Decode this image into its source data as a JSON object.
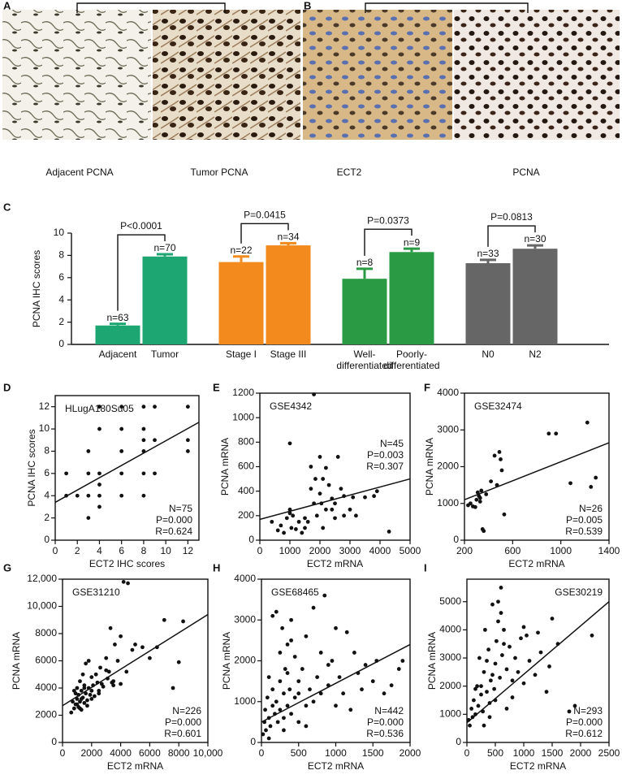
{
  "images": [
    {
      "panel": "A",
      "captions": [
        "Adjacent PCNA",
        "Tumor PCNA"
      ]
    },
    {
      "panel": "B",
      "captions": [
        "ECT2",
        "PCNA"
      ]
    }
  ],
  "chart_data": [
    {
      "panel": "C",
      "type": "bar",
      "ylabel": "PCNA IHC scores",
      "categories": [
        "Adjacent",
        "Tumor",
        "Stage I",
        "Stage III",
        "Well-differentiated",
        "Poorly-differentiated",
        "N0",
        "N2"
      ],
      "values": [
        1.7,
        7.9,
        7.4,
        8.9,
        5.9,
        8.3,
        7.3,
        8.6
      ],
      "errors": [
        0.15,
        0.2,
        0.5,
        0.2,
        0.9,
        0.3,
        0.3,
        0.3
      ],
      "colors": [
        "#1ea672",
        "#1ea672",
        "#f28a1e",
        "#f28a1e",
        "#2a9a45",
        "#2a9a45",
        "#666666",
        "#666666"
      ],
      "n_labels": [
        "n=63",
        "n=70",
        "n=22",
        "n=34",
        "n=8",
        "n=9",
        "n=33",
        "n=30"
      ],
      "p_labels": [
        "P<0.0001",
        "P=0.0415",
        "P=0.0373",
        "P=0.0813"
      ],
      "ylim": [
        0,
        10
      ],
      "yticks": [
        0,
        2,
        4,
        6,
        8,
        10
      ]
    },
    {
      "panel": "D",
      "type": "scatter",
      "xlabel": "ECT2 IHC scores",
      "ylabel": "PCNA IHC scores",
      "dataset": "HLugA180Su05",
      "stats": [
        "N=75",
        "P=0.000",
        "R=0.624"
      ],
      "label_corner": "upper left",
      "stats_corner": "lower right",
      "x": [
        1,
        1,
        2,
        3,
        3,
        3,
        3,
        4,
        4,
        4,
        4,
        4,
        4,
        6,
        6,
        6,
        6,
        6,
        8,
        8,
        8,
        8,
        8,
        8,
        9,
        9,
        9,
        12,
        12,
        12
      ],
      "y": [
        4,
        6,
        4,
        2,
        4,
        6,
        8,
        3,
        4,
        5,
        6,
        10,
        12,
        4,
        6,
        8,
        10,
        12,
        4,
        6,
        8,
        9,
        10,
        12,
        6,
        9,
        12,
        8,
        9,
        12
      ],
      "trend": {
        "x": [
          0,
          13
        ],
        "y": [
          3.4,
          10.6
        ]
      },
      "xlim": [
        0,
        13
      ],
      "xticks": [
        0,
        2,
        4,
        6,
        8,
        10,
        12
      ],
      "ylim": [
        0,
        13
      ],
      "yticks": [
        0,
        2,
        4,
        6,
        8,
        10,
        12
      ]
    },
    {
      "panel": "E",
      "type": "scatter",
      "xlabel": "ECT2 mRNA",
      "ylabel": "PCNA mRNA",
      "dataset": "GSE4342",
      "stats": [
        "N=45",
        "P=0.003",
        "R=0.307"
      ],
      "label_corner": "upper left",
      "stats_corner": "upper right",
      "x": [
        400,
        600,
        700,
        800,
        900,
        1000,
        1000,
        1050,
        1100,
        1200,
        1300,
        1400,
        1500,
        1600,
        1700,
        1800,
        1800,
        1850,
        1900,
        2000,
        2000,
        2050,
        2100,
        2200,
        2200,
        2300,
        2400,
        2500,
        2500,
        2600,
        2700,
        2800,
        2800,
        3000,
        3100,
        3200,
        3500,
        3800,
        3900,
        4300,
        1000,
        1500,
        2100,
        2400,
        1700
      ],
      "y": [
        150,
        80,
        120,
        60,
        180,
        790,
        250,
        100,
        200,
        90,
        150,
        60,
        100,
        150,
        420,
        300,
        1190,
        500,
        200,
        680,
        380,
        300,
        100,
        590,
        250,
        450,
        340,
        180,
        300,
        680,
        420,
        200,
        360,
        250,
        350,
        200,
        350,
        360,
        400,
        70,
        220,
        180,
        500,
        250,
        600
      ],
      "trend": {
        "x": [
          0,
          5000
        ],
        "y": [
          170,
          500
        ]
      },
      "xlim": [
        0,
        5000
      ],
      "xticks": [
        0,
        1000,
        2000,
        3000,
        4000,
        5000
      ],
      "ylim": [
        0,
        1200
      ],
      "yticks": [
        0,
        200,
        400,
        600,
        800,
        1000,
        1200
      ]
    },
    {
      "panel": "F",
      "type": "scatter",
      "xlabel": "ECT2 mRNA",
      "ylabel": "PCNA mRNA",
      "dataset": "GSE32474",
      "stats": [
        "N=26",
        "P=0.005",
        "R=0.539"
      ],
      "label_corner": "upper left",
      "stats_corner": "lower right",
      "x": [
        230,
        250,
        270,
        290,
        300,
        310,
        320,
        330,
        340,
        350,
        360,
        380,
        420,
        450,
        470,
        490,
        500,
        510,
        530,
        900,
        960,
        1080,
        1220,
        1250,
        1290,
        330
      ],
      "y": [
        950,
        1000,
        920,
        900,
        1100,
        1300,
        1200,
        1050,
        1350,
        300,
        250,
        1250,
        1600,
        2300,
        1500,
        2400,
        2200,
        1900,
        700,
        2900,
        2900,
        1550,
        3200,
        1450,
        1700,
        1150
      ],
      "trend": {
        "x": [
          200,
          1400
        ],
        "y": [
          1100,
          2650
        ]
      },
      "xlim": [
        200,
        1400
      ],
      "xticks": [
        200,
        600,
        1000,
        1400
      ],
      "ylim": [
        0,
        4000
      ],
      "yticks": [
        0,
        1000,
        2000,
        3000,
        4000
      ]
    },
    {
      "panel": "G",
      "type": "scatter",
      "xlabel": "ECT2 mRNA",
      "ylabel": "PCNA mRNA",
      "dataset": "GSE31210",
      "stats": [
        "N=226",
        "P=0.000",
        "R=0.601"
      ],
      "label_corner": "upper left",
      "stats_corner": "lower right",
      "x": [
        600,
        700,
        800,
        800,
        900,
        1000,
        1000,
        1100,
        1100,
        1200,
        1200,
        1300,
        1300,
        1400,
        1400,
        1500,
        1500,
        1600,
        1600,
        1700,
        1800,
        1800,
        1900,
        2000,
        2000,
        2100,
        2200,
        2300,
        2400,
        2500,
        2600,
        2700,
        2800,
        3000,
        3100,
        3200,
        3400,
        3500,
        3600,
        3800,
        4000,
        4200,
        4400,
        4500,
        4800,
        5000,
        5500,
        6000,
        6500,
        7000,
        7600,
        8000,
        8300,
        3300,
        900,
        1000,
        1200,
        1500,
        2000,
        2500,
        3000,
        3500,
        4000,
        1300,
        1700
      ],
      "y": [
        2200,
        3000,
        2500,
        3800,
        2800,
        3200,
        4000,
        2600,
        3500,
        3000,
        4500,
        2400,
        3800,
        3300,
        5000,
        2900,
        4200,
        3600,
        5800,
        3100,
        4000,
        6000,
        3500,
        3800,
        4800,
        4200,
        3400,
        5000,
        4400,
        3600,
        5500,
        4300,
        4100,
        6200,
        4700,
        5200,
        4400,
        4200,
        7200,
        6000,
        4300,
        11800,
        5200,
        11700,
        6800,
        7200,
        7000,
        6200,
        7000,
        9000,
        4000,
        5900,
        8900,
        8400,
        3600,
        2800,
        2500,
        4000,
        3200,
        3800,
        5300,
        4500,
        7800,
        3200,
        2700
      ],
      "trend": {
        "x": [
          0,
          10000
        ],
        "y": [
          2700,
          9400
        ]
      },
      "xlim": [
        0,
        10000
      ],
      "xticks": [
        0,
        2000,
        4000,
        6000,
        8000,
        {
          "value": 10000,
          "label": "10,000"
        }
      ],
      "ylim": [
        0,
        12000
      ],
      "yticks": [
        0,
        2000,
        4000,
        6000,
        8000,
        {
          "value": 10000,
          "label": "10,000"
        },
        {
          "value": 12000,
          "label": "12,000"
        }
      ]
    },
    {
      "panel": "H",
      "type": "scatter",
      "xlabel": "ECT2 mRNA",
      "ylabel": "PCNA mRNA",
      "dataset": "GSE68465",
      "stats": [
        "N=442",
        "P=0.000",
        "R=0.536"
      ],
      "label_corner": "upper left",
      "stats_corner": "lower right",
      "x": [
        20,
        40,
        50,
        60,
        80,
        100,
        100,
        120,
        150,
        150,
        180,
        200,
        200,
        220,
        250,
        250,
        280,
        300,
        300,
        320,
        350,
        350,
        380,
        400,
        400,
        450,
        450,
        500,
        500,
        550,
        600,
        600,
        650,
        700,
        700,
        750,
        800,
        800,
        850,
        900,
        950,
        1000,
        1000,
        1050,
        1100,
        1150,
        1200,
        1250,
        1300,
        1350,
        1400,
        1500,
        1550,
        1650,
        1750,
        1850,
        1900,
        150,
        250,
        350,
        500,
        100,
        300,
        600,
        900,
        400
      ],
      "y": [
        200,
        500,
        800,
        300,
        1100,
        600,
        1600,
        400,
        900,
        1300,
        700,
        3200,
        1000,
        500,
        1500,
        800,
        2800,
        1200,
        600,
        1800,
        900,
        2400,
        1300,
        700,
        3000,
        1100,
        2100,
        500,
        1500,
        1800,
        900,
        2600,
        1300,
        1000,
        3300,
        1600,
        1200,
        2200,
        3600,
        1400,
        2000,
        900,
        2800,
        1600,
        1200,
        2700,
        800,
        2200,
        1700,
        1300,
        1900,
        1500,
        2000,
        1200,
        1400,
        1800,
        2000,
        3100,
        2200,
        1700,
        1200,
        100,
        300,
        400,
        1900,
        2500
      ],
      "trend": {
        "x": [
          0,
          2000
        ],
        "y": [
          500,
          2400
        ]
      },
      "xlim": [
        0,
        2000
      ],
      "xticks": [
        0,
        500,
        1000,
        1500,
        2000
      ],
      "ylim": [
        0,
        4000
      ],
      "yticks": [
        0,
        1000,
        2000,
        3000,
        4000
      ]
    },
    {
      "panel": "I",
      "type": "scatter",
      "xlabel": "ECT2 mRNA",
      "ylabel": "PCNA mRNA",
      "dataset": "GSE30219",
      "stats": [
        "N=293",
        "P=0.000",
        "R=0.612"
      ],
      "label_corner": "upper right",
      "stats_corner": "lower right",
      "x": [
        30,
        50,
        80,
        100,
        120,
        150,
        180,
        200,
        220,
        250,
        280,
        300,
        320,
        350,
        380,
        400,
        420,
        450,
        480,
        500,
        520,
        550,
        580,
        600,
        620,
        650,
        700,
        750,
        800,
        850,
        900,
        950,
        1000,
        1050,
        1100,
        1200,
        1250,
        1300,
        1400,
        1450,
        1500,
        1600,
        1800,
        1900,
        2200,
        300,
        400,
        500,
        600,
        700,
        250,
        350,
        550,
        650,
        800,
        1000,
        150,
        450
      ],
      "y": [
        800,
        600,
        1200,
        900,
        1500,
        1000,
        2000,
        1300,
        3000,
        1700,
        1100,
        2500,
        4000,
        1800,
        3300,
        1400,
        2200,
        4900,
        1900,
        2800,
        3600,
        5000,
        2300,
        5500,
        3100,
        4000,
        2600,
        3400,
        2200,
        3000,
        2500,
        3700,
        2100,
        3800,
        2900,
        2400,
        3900,
        3200,
        1800,
        2700,
        4400,
        3500,
        1100,
        1300,
        3800,
        600,
        900,
        1500,
        4600,
        1200,
        2000,
        2900,
        4300,
        3500,
        1600,
        4100,
        1900,
        2400
      ],
      "trend": {
        "x": [
          0,
          2500
        ],
        "y": [
          700,
          5000
        ]
      },
      "xlim": [
        0,
        2500
      ],
      "xticks": [
        0,
        500,
        1000,
        1500,
        2000,
        2500
      ],
      "ylim": [
        0,
        5800
      ],
      "yticks": [
        0,
        1000,
        2000,
        3000,
        4000,
        5000
      ]
    }
  ]
}
